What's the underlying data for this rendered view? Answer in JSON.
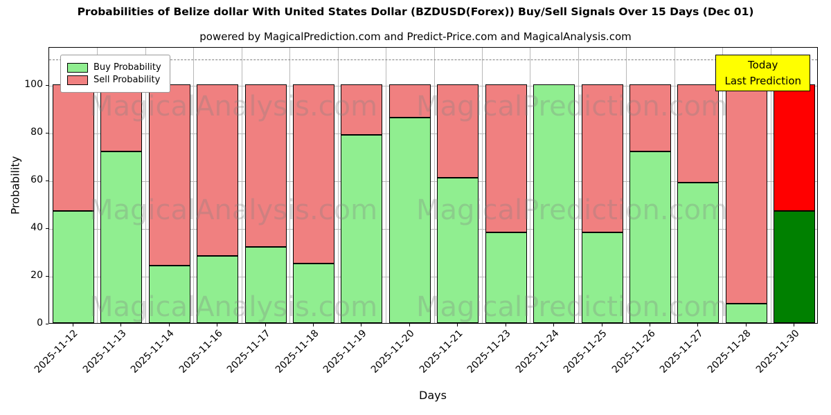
{
  "header": {
    "title": "Probabilities of Belize dollar With United States Dollar (BZDUSD(Forex)) Buy/Sell Signals Over 15 Days (Dec 01)",
    "subtitle": "powered by MagicalPrediction.com and Predict-Price.com and MagicalAnalysis.com"
  },
  "legend": [
    {
      "label": "Buy Probability",
      "color": "#90ee90"
    },
    {
      "label": "Sell Probability",
      "color": "#f08080"
    }
  ],
  "annotation_box": {
    "lines": [
      "Today",
      "Last Prediction"
    ],
    "bg_color": "#ffff00"
  },
  "watermarks": {
    "left_text": "MagicalAnalysis.com",
    "right_text": "MagicalPrediction.com"
  },
  "chart_data": {
    "type": "bar",
    "stacked": true,
    "title": "Probabilities of Belize dollar With United States Dollar (BZDUSD(Forex)) Buy/Sell Signals Over 15 Days (Dec 01)",
    "xlabel": "Days",
    "ylabel": "Probability",
    "categories": [
      "2025-11-12",
      "2025-11-13",
      "2025-11-14",
      "2025-11-16",
      "2025-11-17",
      "2025-11-18",
      "2025-11-19",
      "2025-11-20",
      "2025-11-21",
      "2025-11-23",
      "2025-11-24",
      "2025-11-25",
      "2025-11-26",
      "2025-11-27",
      "2025-11-28",
      "2025-11-30"
    ],
    "series": [
      {
        "name": "Buy Probability",
        "color": "#90ee90",
        "highlight_color": "#008000",
        "values": [
          47,
          72,
          24,
          28,
          32,
          25,
          79,
          86,
          61,
          38,
          100,
          38,
          72,
          59,
          8,
          47
        ]
      },
      {
        "name": "Sell Probability",
        "color": "#f08080",
        "highlight_color": "#ff0000",
        "values": [
          53,
          28,
          76,
          72,
          68,
          75,
          21,
          14,
          39,
          62,
          0,
          62,
          28,
          41,
          92,
          53
        ]
      }
    ],
    "highlight_index": 15,
    "ylim": [
      0,
      116
    ],
    "yticks": [
      0,
      20,
      40,
      60,
      80,
      100
    ],
    "dashed_line_y": 111,
    "grid": true,
    "legend_position": "upper left"
  }
}
